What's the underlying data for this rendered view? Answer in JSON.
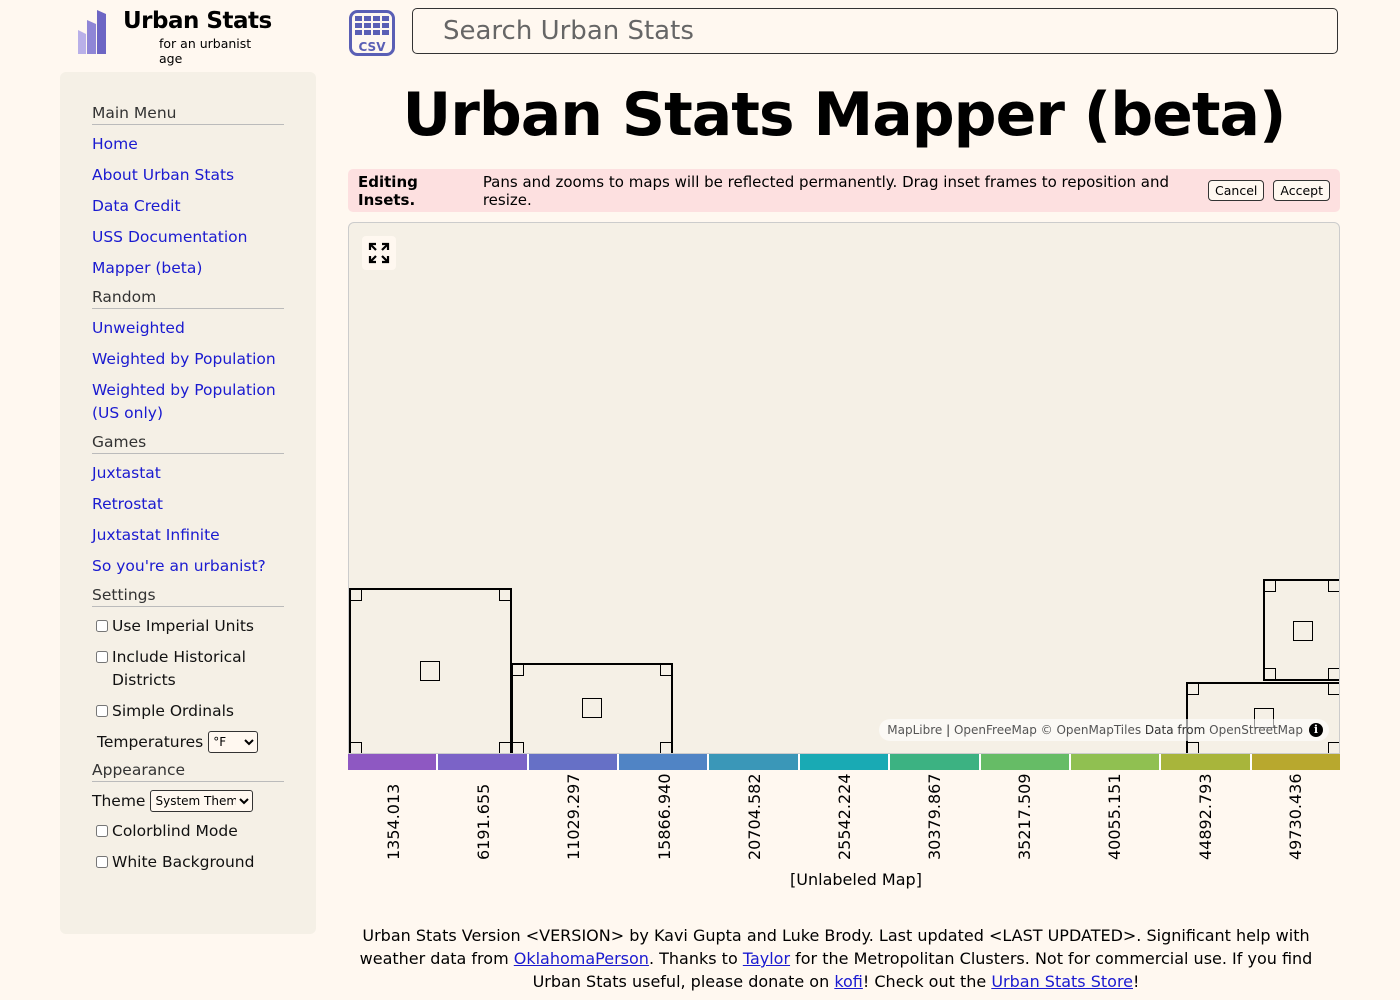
{
  "header": {
    "logo_title": "Urban Stats",
    "logo_subtitle": "for an urbanist age",
    "csv_icon_label": "CSV",
    "search_placeholder": "Search Urban Stats"
  },
  "sidebar": {
    "main_menu": {
      "title": "Main Menu",
      "items": [
        "Home",
        "About Urban Stats",
        "Data Credit",
        "USS Documentation",
        "Mapper (beta)"
      ]
    },
    "random": {
      "title": "Random",
      "items": [
        "Unweighted",
        "Weighted by Population",
        "Weighted by Population (US only)"
      ]
    },
    "games": {
      "title": "Games",
      "items": [
        "Juxtastat",
        "Retrostat",
        "Juxtastat Infinite",
        "So you're an urbanist?"
      ]
    },
    "settings": {
      "title": "Settings",
      "use_imperial": "Use Imperial Units",
      "include_historical": "Include Historical Districts",
      "simple_ordinals": "Simple Ordinals",
      "temperatures_label": "Temperatures",
      "temperature_value": "°F"
    },
    "appearance": {
      "title": "Appearance",
      "theme_label": "Theme",
      "theme_value": "System Theme",
      "colorblind": "Colorblind Mode",
      "white_background": "White Background"
    }
  },
  "main": {
    "title": "Urban Stats Mapper (beta)",
    "banner": {
      "bold": "Editing Insets.",
      "text": "Pans and zooms to maps will be reflected permanently. Drag inset frames to reposition and resize.",
      "cancel": "Cancel",
      "accept": "Accept"
    },
    "attribution": {
      "maplibre": "MapLibre",
      "sep": "|",
      "openfreemap": "OpenFreeMap",
      "openmaptiles": "© OpenMapTiles",
      "data_from": "Data from",
      "osm": "OpenStreetMap"
    },
    "legend": {
      "colors": [
        "#8e58c2",
        "#7b63c7",
        "#6670c6",
        "#5084c5",
        "#3a97b8",
        "#19aab4",
        "#3cb282",
        "#66bc66",
        "#90c051",
        "#a8b53b",
        "#b8a82e"
      ],
      "ticks": [
        "1354.013",
        "6191.655",
        "11029.297",
        "15866.940",
        "20704.582",
        "25542.224",
        "30379.867",
        "35217.509",
        "40055.151",
        "44892.793",
        "49730.436"
      ]
    },
    "map_label": "[Unlabeled Map]"
  },
  "footer": {
    "t1": "Urban Stats Version <VERSION> by Kavi Gupta and Luke Brody. Last updated <LAST UPDATED>. Significant help with weather data from ",
    "l1": "OklahomaPerson",
    "t2": ". Thanks to ",
    "l2": "Taylor",
    "t3": " for the Metropolitan Clusters. Not for commercial use. If you find Urban Stats useful, please donate on ",
    "l3": "kofi",
    "t4": "! Check out the ",
    "l4": "Urban Stats Store",
    "t5": "!"
  }
}
